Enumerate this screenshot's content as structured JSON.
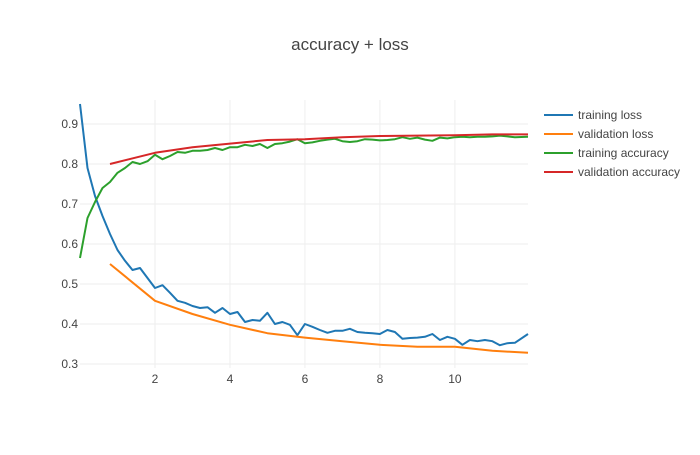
{
  "chart_data": {
    "type": "line",
    "title": "accuracy + loss",
    "xlabel": "",
    "ylabel": "",
    "xlim": [
      0,
      11.95
    ],
    "ylim": [
      0.29,
      0.96
    ],
    "x_ticks": [
      2,
      4,
      6,
      8,
      10
    ],
    "y_ticks": [
      0.3,
      0.4,
      0.5,
      0.6,
      0.7,
      0.8,
      0.9
    ],
    "grid": true,
    "legend_position": "top-right",
    "series": [
      {
        "name": "training loss",
        "color": "#1f77b4",
        "points": [
          [
            0.0,
            0.95
          ],
          [
            0.2,
            0.79
          ],
          [
            0.4,
            0.72
          ],
          [
            0.6,
            0.67
          ],
          [
            0.8,
            0.625
          ],
          [
            1.0,
            0.585
          ],
          [
            1.2,
            0.558
          ],
          [
            1.4,
            0.535
          ],
          [
            1.6,
            0.54
          ],
          [
            1.8,
            0.515
          ],
          [
            2.0,
            0.49
          ],
          [
            2.2,
            0.497
          ],
          [
            2.4,
            0.478
          ],
          [
            2.6,
            0.458
          ],
          [
            2.8,
            0.453
          ],
          [
            3.0,
            0.445
          ],
          [
            3.2,
            0.44
          ],
          [
            3.4,
            0.442
          ],
          [
            3.6,
            0.428
          ],
          [
            3.8,
            0.44
          ],
          [
            4.0,
            0.425
          ],
          [
            4.2,
            0.43
          ],
          [
            4.4,
            0.405
          ],
          [
            4.6,
            0.41
          ],
          [
            4.8,
            0.408
          ],
          [
            5.0,
            0.428
          ],
          [
            5.2,
            0.4
          ],
          [
            5.4,
            0.405
          ],
          [
            5.6,
            0.398
          ],
          [
            5.8,
            0.372
          ],
          [
            6.0,
            0.4
          ],
          [
            6.2,
            0.393
          ],
          [
            6.4,
            0.385
          ],
          [
            6.6,
            0.378
          ],
          [
            6.8,
            0.383
          ],
          [
            7.0,
            0.383
          ],
          [
            7.2,
            0.388
          ],
          [
            7.4,
            0.38
          ],
          [
            7.6,
            0.378
          ],
          [
            7.8,
            0.377
          ],
          [
            8.0,
            0.375
          ],
          [
            8.2,
            0.385
          ],
          [
            8.4,
            0.38
          ],
          [
            8.6,
            0.363
          ],
          [
            8.8,
            0.365
          ],
          [
            9.0,
            0.366
          ],
          [
            9.2,
            0.368
          ],
          [
            9.4,
            0.375
          ],
          [
            9.6,
            0.36
          ],
          [
            9.8,
            0.368
          ],
          [
            10.0,
            0.363
          ],
          [
            10.2,
            0.348
          ],
          [
            10.4,
            0.36
          ],
          [
            10.6,
            0.357
          ],
          [
            10.8,
            0.36
          ],
          [
            11.0,
            0.357
          ],
          [
            11.2,
            0.347
          ],
          [
            11.4,
            0.352
          ],
          [
            11.6,
            0.353
          ],
          [
            11.95,
            0.375
          ]
        ]
      },
      {
        "name": "validation loss",
        "color": "#ff7f0e",
        "points": [
          [
            0.8,
            0.55
          ],
          [
            2.0,
            0.458
          ],
          [
            3.0,
            0.425
          ],
          [
            4.0,
            0.398
          ],
          [
            5.0,
            0.377
          ],
          [
            6.0,
            0.366
          ],
          [
            7.0,
            0.357
          ],
          [
            8.0,
            0.348
          ],
          [
            9.0,
            0.343
          ],
          [
            10.0,
            0.343
          ],
          [
            11.0,
            0.333
          ],
          [
            11.95,
            0.328
          ]
        ]
      },
      {
        "name": "training accuracy",
        "color": "#2ca02c",
        "points": [
          [
            0.0,
            0.565
          ],
          [
            0.2,
            0.665
          ],
          [
            0.4,
            0.705
          ],
          [
            0.6,
            0.74
          ],
          [
            0.8,
            0.755
          ],
          [
            1.0,
            0.778
          ],
          [
            1.2,
            0.79
          ],
          [
            1.4,
            0.805
          ],
          [
            1.6,
            0.8
          ],
          [
            1.8,
            0.807
          ],
          [
            2.0,
            0.823
          ],
          [
            2.2,
            0.812
          ],
          [
            2.4,
            0.82
          ],
          [
            2.6,
            0.83
          ],
          [
            2.8,
            0.828
          ],
          [
            3.0,
            0.833
          ],
          [
            3.2,
            0.833
          ],
          [
            3.4,
            0.835
          ],
          [
            3.6,
            0.84
          ],
          [
            3.8,
            0.835
          ],
          [
            4.0,
            0.842
          ],
          [
            4.2,
            0.842
          ],
          [
            4.4,
            0.848
          ],
          [
            4.6,
            0.845
          ],
          [
            4.8,
            0.85
          ],
          [
            5.0,
            0.84
          ],
          [
            5.2,
            0.85
          ],
          [
            5.4,
            0.852
          ],
          [
            5.6,
            0.856
          ],
          [
            5.8,
            0.862
          ],
          [
            6.0,
            0.852
          ],
          [
            6.2,
            0.854
          ],
          [
            6.4,
            0.858
          ],
          [
            6.6,
            0.861
          ],
          [
            6.8,
            0.863
          ],
          [
            7.0,
            0.857
          ],
          [
            7.2,
            0.855
          ],
          [
            7.4,
            0.857
          ],
          [
            7.6,
            0.862
          ],
          [
            7.8,
            0.861
          ],
          [
            8.0,
            0.859
          ],
          [
            8.2,
            0.86
          ],
          [
            8.4,
            0.862
          ],
          [
            8.6,
            0.867
          ],
          [
            8.8,
            0.863
          ],
          [
            9.0,
            0.866
          ],
          [
            9.2,
            0.861
          ],
          [
            9.4,
            0.858
          ],
          [
            9.6,
            0.866
          ],
          [
            9.8,
            0.864
          ],
          [
            10.0,
            0.867
          ],
          [
            10.2,
            0.868
          ],
          [
            10.4,
            0.867
          ],
          [
            10.6,
            0.868
          ],
          [
            10.8,
            0.868
          ],
          [
            11.0,
            0.869
          ],
          [
            11.2,
            0.871
          ],
          [
            11.4,
            0.869
          ],
          [
            11.6,
            0.867
          ],
          [
            11.95,
            0.868
          ]
        ]
      },
      {
        "name": "validation accuracy",
        "color": "#d62728",
        "points": [
          [
            0.8,
            0.8
          ],
          [
            2.0,
            0.828
          ],
          [
            3.0,
            0.842
          ],
          [
            4.0,
            0.851
          ],
          [
            5.0,
            0.86
          ],
          [
            6.0,
            0.862
          ],
          [
            7.0,
            0.867
          ],
          [
            8.0,
            0.87
          ],
          [
            9.0,
            0.871
          ],
          [
            10.0,
            0.872
          ],
          [
            11.0,
            0.874
          ],
          [
            11.95,
            0.874
          ]
        ]
      }
    ]
  }
}
